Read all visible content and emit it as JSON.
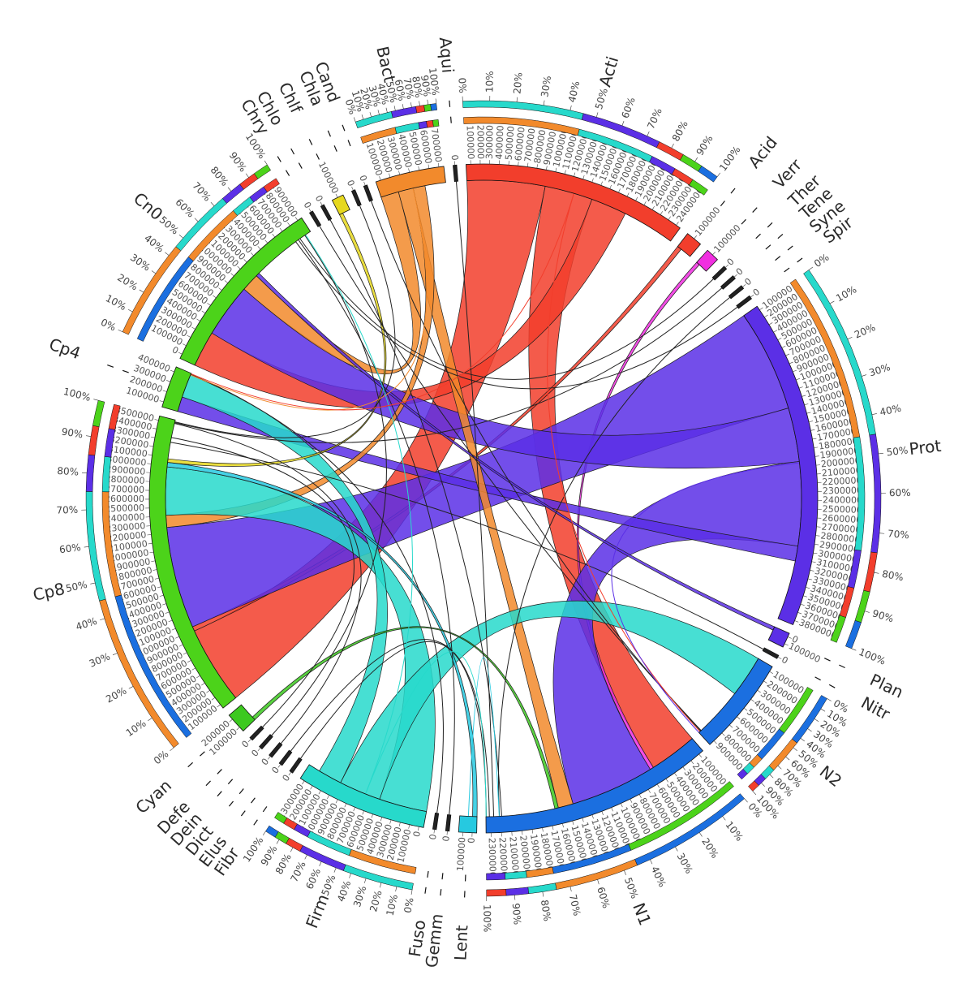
{
  "chart_data": {
    "type": "chord",
    "segments": [
      {
        "id": "Acti",
        "label": "Acti",
        "color": "#f23e2c",
        "value": 7.5,
        "ticks": [
          "100000",
          "200000",
          "300000",
          "400000",
          "500000",
          "600000",
          "700000",
          "800000",
          "900000",
          "1000000",
          "1100000",
          "1200000",
          "1300000",
          "1400000",
          "1500000",
          "1600000",
          "1700000",
          "1800000",
          "1900000",
          "2000000",
          "2100000",
          "2200000",
          "2300000",
          "2400000"
        ]
      },
      {
        "id": "Acid",
        "label": "Acid",
        "color": "#f23e2c",
        "value": 0.55,
        "ticks": [
          "100000"
        ]
      },
      {
        "id": "Verr",
        "label": "Verr",
        "color": "#f02fe0",
        "value": 0.45,
        "ticks": [
          "100000"
        ]
      },
      {
        "id": "Ther",
        "label": "Ther",
        "color": "#222222",
        "value": 0.12,
        "ticks": [
          "0"
        ]
      },
      {
        "id": "Tene",
        "label": "Tene",
        "color": "#222222",
        "value": 0.12,
        "ticks": [
          "0"
        ]
      },
      {
        "id": "Syne",
        "label": "Syne",
        "color": "#222222",
        "value": 0.12,
        "ticks": [
          "0"
        ]
      },
      {
        "id": "Spir",
        "label": "Spir",
        "color": "#222222",
        "value": 0.12,
        "ticks": [
          "0"
        ]
      },
      {
        "id": "Prot",
        "label": "Prot",
        "color": "#5b2fe6",
        "value": 11.0,
        "ticks": [
          "100000",
          "200000",
          "300000",
          "400000",
          "500000",
          "600000",
          "700000",
          "800000",
          "900000",
          "1000000",
          "1100000",
          "1200000",
          "1300000",
          "1400000",
          "1500000",
          "1600000",
          "1700000",
          "1800000",
          "1900000",
          "2000000",
          "2100000",
          "2200000",
          "2300000",
          "2400000",
          "2500000",
          "2600000",
          "2700000",
          "2800000",
          "2900000",
          "3000000",
          "3100000",
          "3200000",
          "3300000",
          "3400000",
          "3500000",
          "3600000",
          "3700000",
          "3800000"
        ]
      },
      {
        "id": "Plan",
        "label": "Plan",
        "color": "#5b2fe6",
        "value": 0.5,
        "ticks": [
          "0",
          "100000"
        ]
      },
      {
        "id": "Nitr",
        "label": "Nitr",
        "color": "#222222",
        "value": 0.12,
        "ticks": [
          "0"
        ]
      },
      {
        "id": "N2",
        "label": "N2",
        "color": "#1b6fe0",
        "value": 3.3,
        "ticks": [
          "100000",
          "200000",
          "300000",
          "400000",
          "500000",
          "600000",
          "700000",
          "800000",
          "900000"
        ]
      },
      {
        "id": "N1",
        "label": "N1",
        "color": "#1b6fe0",
        "value": 7.8,
        "ticks": [
          "100000",
          "200000",
          "300000",
          "400000",
          "500000",
          "600000",
          "700000",
          "800000",
          "900000",
          "1000000",
          "1100000",
          "1200000",
          "1300000",
          "1400000",
          "1500000",
          "1600000",
          "1700000",
          "1800000",
          "1900000",
          "2000000",
          "2100000",
          "2200000",
          "2300000"
        ]
      },
      {
        "id": "Lent",
        "label": "Lent",
        "color": "#26c9e0",
        "value": 0.6,
        "ticks": [
          "0",
          "100000"
        ]
      },
      {
        "id": "Gemm",
        "label": "Gemm",
        "color": "#222222",
        "value": 0.12,
        "ticks": [
          "0"
        ]
      },
      {
        "id": "Fuso",
        "label": "Fuso",
        "color": "#222222",
        "value": 0.12,
        "ticks": [
          "0"
        ]
      },
      {
        "id": "Firm",
        "label": "Firm",
        "color": "#27d9cb",
        "value": 4.4,
        "ticks": [
          "0",
          "100000",
          "200000",
          "300000",
          "400000",
          "500000",
          "600000",
          "700000",
          "800000",
          "900000",
          "1000000",
          "1100000",
          "1200000",
          "1300000"
        ]
      },
      {
        "id": "Fibr",
        "label": "Fibr",
        "color": "#222222",
        "value": 0.12,
        "ticks": [
          "0"
        ]
      },
      {
        "id": "Elus",
        "label": "Elus",
        "color": "#222222",
        "value": 0.12,
        "ticks": [
          "0"
        ]
      },
      {
        "id": "Dict",
        "label": "Dict",
        "color": "#222222",
        "value": 0.12,
        "ticks": [
          "0"
        ]
      },
      {
        "id": "Dein",
        "label": "Dein",
        "color": "#222222",
        "value": 0.12,
        "ticks": [
          "0"
        ]
      },
      {
        "id": "Defe",
        "label": "Defe",
        "color": "#222222",
        "value": 0.12,
        "ticks": [
          "0"
        ]
      },
      {
        "id": "Cyan",
        "label": "Cyan",
        "color": "#3cc91f",
        "value": 0.7,
        "ticks": [
          "100000",
          "200000"
        ]
      },
      {
        "id": "Cp8",
        "label": "Cp8",
        "color": "#4cd31a",
        "value": 10.2,
        "ticks": [
          "100000",
          "200000",
          "300000",
          "400000",
          "500000",
          "600000",
          "700000",
          "800000",
          "900000",
          "1000000",
          "1100000",
          "1200000",
          "1300000",
          "1400000",
          "1500000",
          "1600000",
          "1700000",
          "1800000",
          "1900000",
          "2000000",
          "2100000",
          "2200000",
          "2300000",
          "2400000",
          "2500000",
          "2600000",
          "2700000",
          "2800000",
          "2900000",
          "3000000",
          "3100000",
          "3200000",
          "3300000",
          "3400000",
          "3500000"
        ]
      },
      {
        "id": "Cp4",
        "label": "Cp4",
        "color": "#4cd31a",
        "value": 1.4,
        "ticks": [
          "100000",
          "200000",
          "300000",
          "400000"
        ]
      },
      {
        "id": "Cn0",
        "label": "Cn0",
        "color": "#4cd31a",
        "value": 6.2,
        "ticks": [
          "0",
          "100000",
          "200000",
          "300000",
          "400000",
          "500000",
          "600000",
          "700000",
          "800000",
          "900000",
          "1000000",
          "1100000",
          "1200000",
          "1300000",
          "1400000",
          "1500000",
          "1600000",
          "1700000",
          "1800000",
          "1900000"
        ]
      },
      {
        "id": "Chry",
        "label": "Chry",
        "color": "#222222",
        "value": 0.12,
        "ticks": [
          "0"
        ]
      },
      {
        "id": "Chlo",
        "label": "Chlo",
        "color": "#222222",
        "value": 0.12,
        "ticks": [
          "0"
        ]
      },
      {
        "id": "Chlf",
        "label": "Chlf",
        "color": "#e6d81e",
        "value": 0.4,
        "ticks": [
          "100000"
        ]
      },
      {
        "id": "Chla",
        "label": "Chla",
        "color": "#222222",
        "value": 0.12,
        "ticks": [
          "0"
        ]
      },
      {
        "id": "Cand",
        "label": "Cand",
        "color": "#222222",
        "value": 0.12,
        "ticks": [
          "0"
        ]
      },
      {
        "id": "Bact",
        "label": "Bact",
        "color": "#f28a2c",
        "value": 2.3,
        "ticks": [
          "100000",
          "200000",
          "300000",
          "400000",
          "500000",
          "600000",
          "700000"
        ]
      },
      {
        "id": "Aqui",
        "label": "Aqui",
        "color": "#222222",
        "value": 0.12,
        "ticks": [
          "0"
        ]
      }
    ],
    "percent_ticks": [
      "0%",
      "10%",
      "20%",
      "30%",
      "40%",
      "50%",
      "60%",
      "70%",
      "80%",
      "90%",
      "100%"
    ],
    "percent_ring_segments": [
      "Acti",
      "Prot",
      "N1",
      "Firm",
      "Cp8",
      "Cn0",
      "Bact",
      "N2"
    ],
    "ribbons": [
      {
        "from": "Acti",
        "to": "Cp8",
        "width": 2.6,
        "color": "#f23e2c"
      },
      {
        "from": "Acti",
        "to": "N1",
        "width": 1.6,
        "color": "#f23e2c"
      },
      {
        "from": "Acti",
        "to": "Cn0",
        "width": 1.2,
        "color": "#f23e2c"
      },
      {
        "from": "Acid",
        "to": "Cp8",
        "width": 0.15,
        "color": "#f23e2c"
      },
      {
        "from": "Verr",
        "to": "N1",
        "width": 0.12,
        "color": "#f02fe0"
      },
      {
        "from": "Prot",
        "to": "Cp8",
        "width": 3.4,
        "color": "#5b2fe6"
      },
      {
        "from": "Prot",
        "to": "Cn0",
        "width": 1.8,
        "color": "#5b2fe6"
      },
      {
        "from": "Prot",
        "to": "N1",
        "width": 2.8,
        "color": "#5b2fe6"
      },
      {
        "from": "Prot",
        "to": "Cp4",
        "width": 0.5,
        "color": "#5b2fe6"
      },
      {
        "from": "Bact",
        "to": "Cn0",
        "width": 0.6,
        "color": "#f28a2c"
      },
      {
        "from": "Bact",
        "to": "N1",
        "width": 0.5,
        "color": "#f28a2c"
      },
      {
        "from": "Bact",
        "to": "Cp8",
        "width": 0.4,
        "color": "#f28a2c"
      },
      {
        "from": "Firm",
        "to": "Cp8",
        "width": 1.6,
        "color": "#27d9cb"
      },
      {
        "from": "Firm",
        "to": "N2",
        "width": 1.4,
        "color": "#27d9cb"
      },
      {
        "from": "Firm",
        "to": "Cp4",
        "width": 0.8,
        "color": "#27d9cb"
      },
      {
        "from": "Lent",
        "to": "Cp8",
        "width": 0.15,
        "color": "#26c9e0"
      },
      {
        "from": "Chlf",
        "to": "Cp8",
        "width": 0.12,
        "color": "#e6d81e"
      },
      {
        "from": "Cyan",
        "to": "N1",
        "width": 0.12,
        "color": "#3cc91f"
      },
      {
        "from": "Plan",
        "to": "Cn0",
        "width": 0.12,
        "color": "#5b2fe6"
      }
    ],
    "thin_links": [
      {
        "from": "Fibr",
        "to": "N1"
      },
      {
        "from": "Elus",
        "to": "N1"
      },
      {
        "from": "Dict",
        "to": "Cp8"
      },
      {
        "from": "Dein",
        "to": "Cn0"
      },
      {
        "from": "Defe",
        "to": "Cp8"
      },
      {
        "from": "Ther",
        "to": "Cn0"
      },
      {
        "from": "Tene",
        "to": "Cp8"
      },
      {
        "from": "Syne",
        "to": "N1"
      },
      {
        "from": "Spir",
        "to": "Cn0"
      },
      {
        "from": "Nitr",
        "to": "Cp8"
      },
      {
        "from": "Gemm",
        "to": "Cn0"
      },
      {
        "from": "Fuso",
        "to": "Cp4"
      },
      {
        "from": "Chry",
        "to": "N2"
      },
      {
        "from": "Chlo",
        "to": "N1"
      },
      {
        "from": "Chla",
        "to": "Cp8"
      },
      {
        "from": "Cand",
        "to": "N2"
      },
      {
        "from": "Aqui",
        "to": "N1"
      },
      {
        "from": "Acti",
        "to": "N2"
      },
      {
        "from": "Prot",
        "to": "N2"
      },
      {
        "from": "Bact",
        "to": "Cp4"
      },
      {
        "from": "Firm",
        "to": "Cn0"
      },
      {
        "from": "Firm",
        "to": "N1"
      },
      {
        "from": "Acti",
        "to": "Cp4"
      },
      {
        "from": "Lent",
        "to": "N1"
      }
    ]
  }
}
